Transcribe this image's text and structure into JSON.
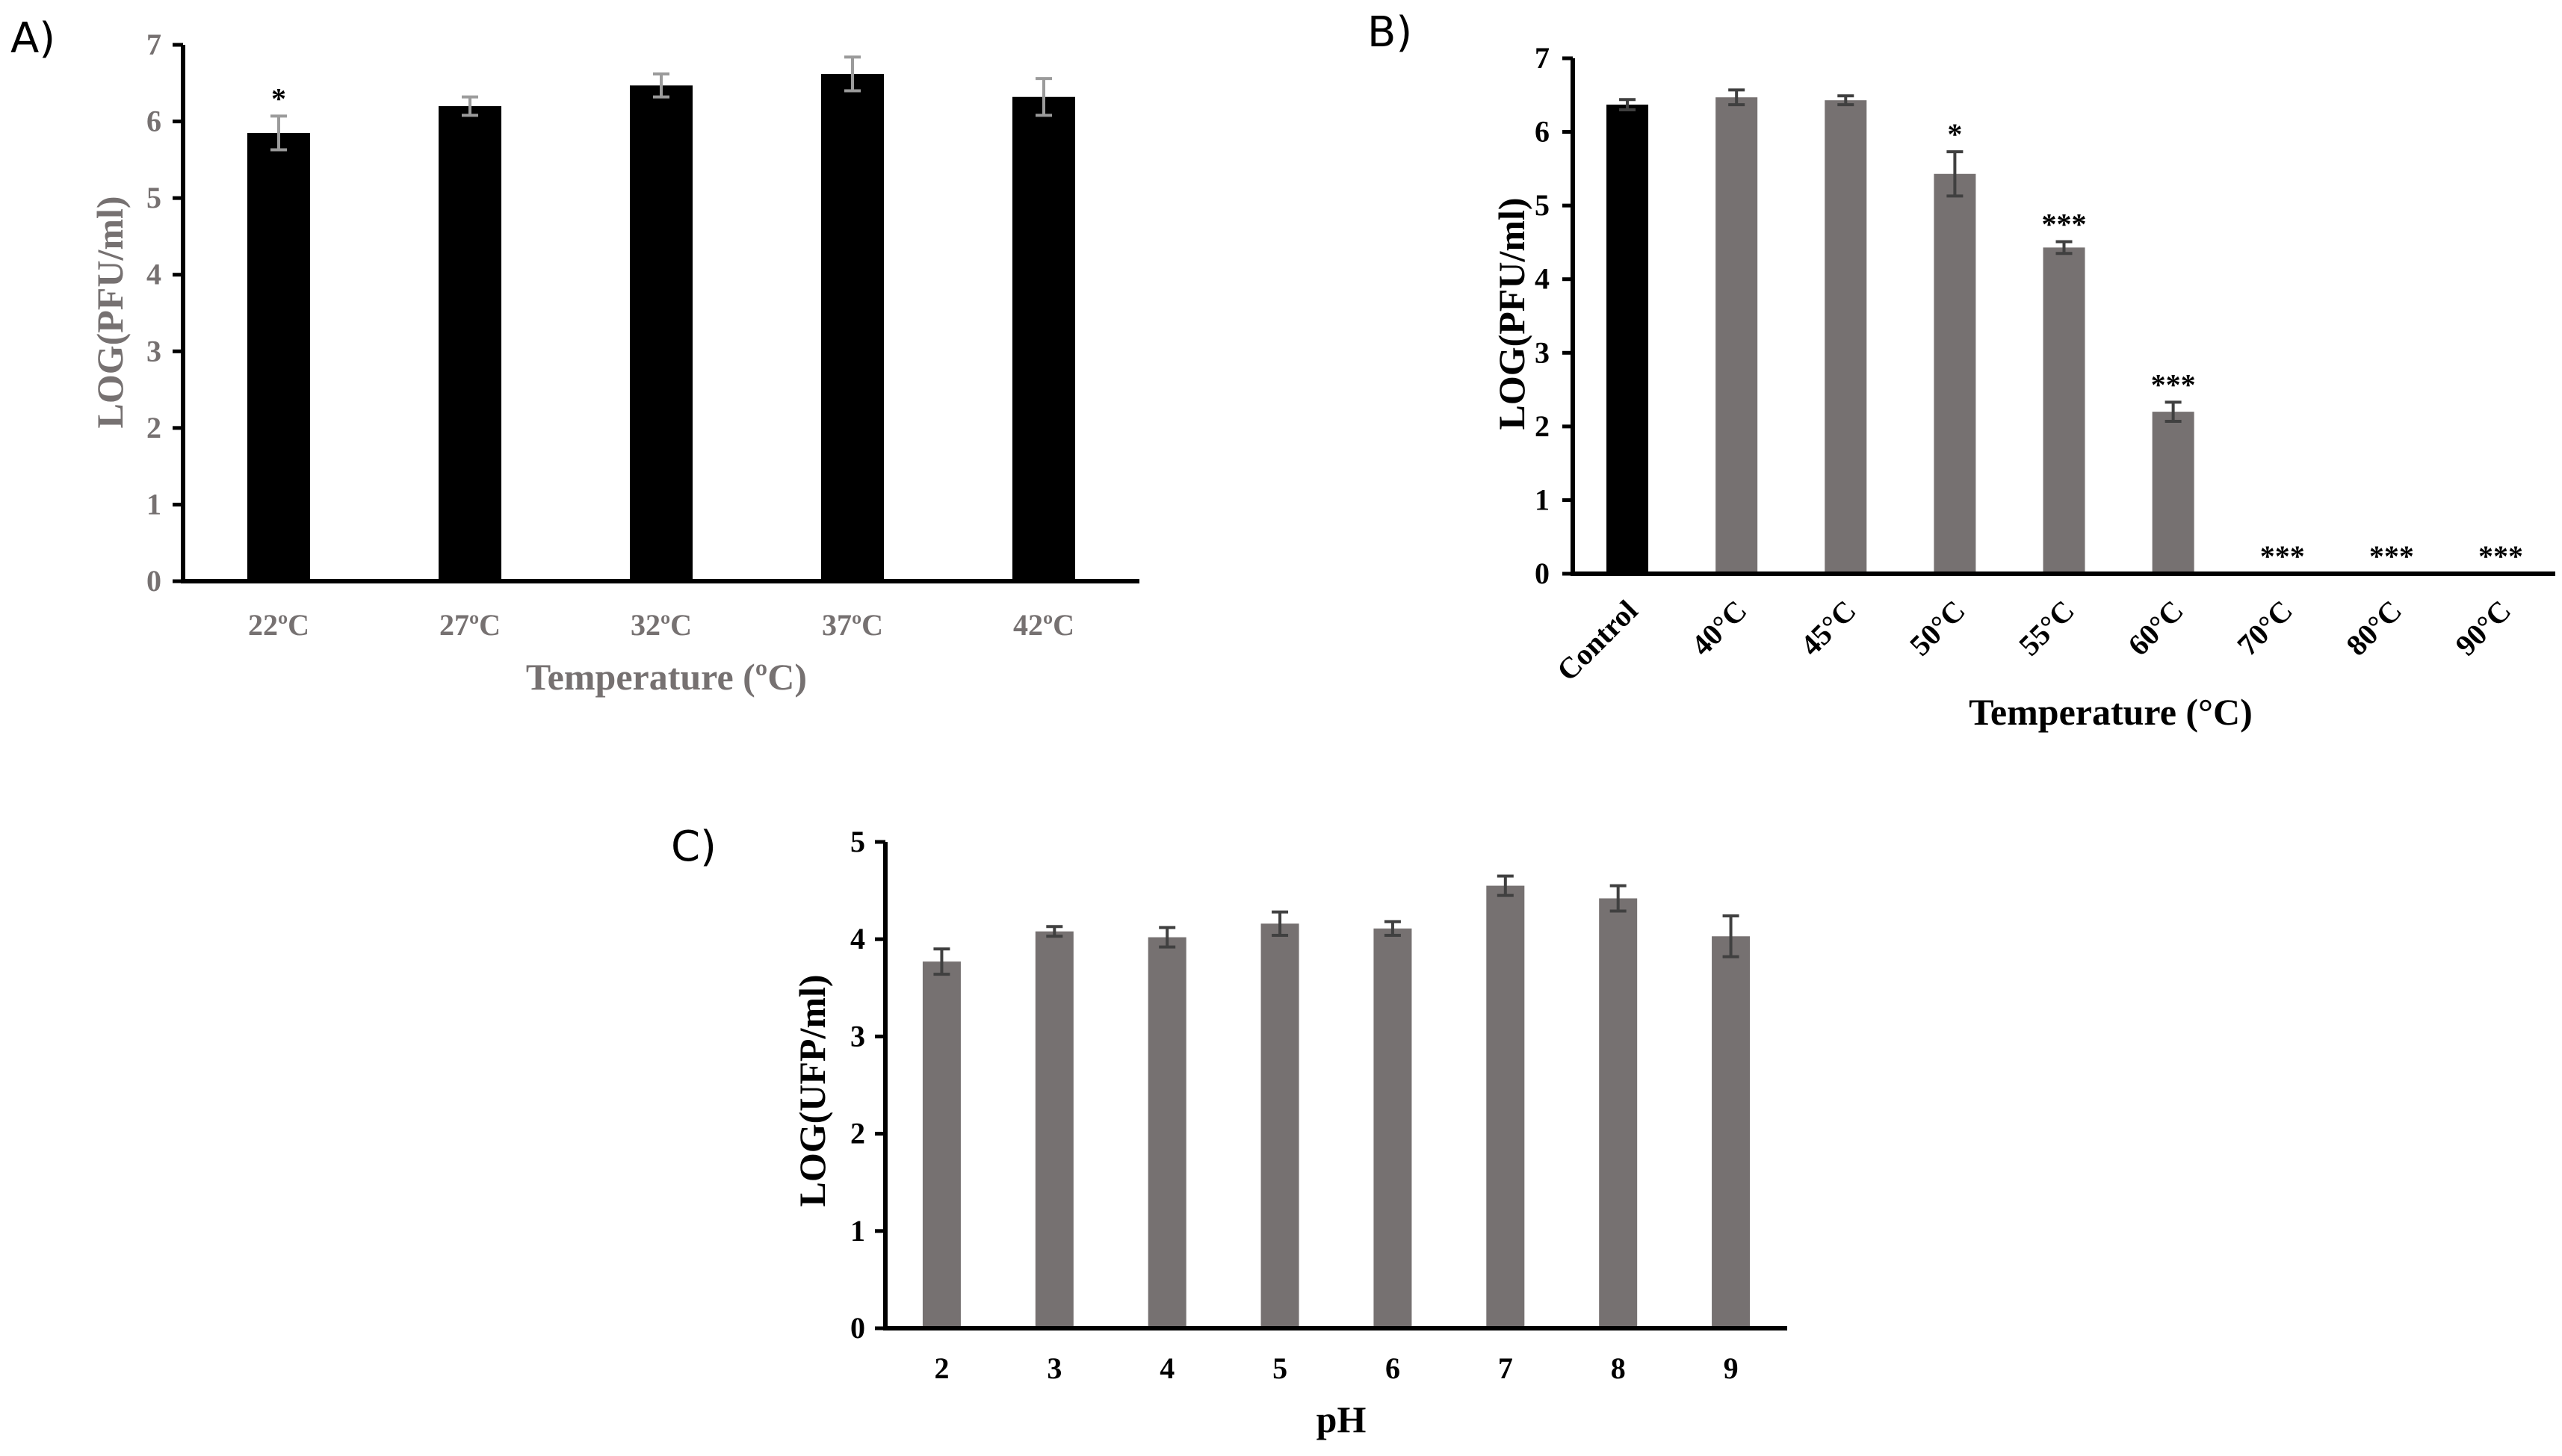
{
  "chart_data": [
    {
      "panel": "A)",
      "type": "bar",
      "categories": [
        "22ºC",
        "27ºC",
        "32ºC",
        "37ºC",
        "42ºC"
      ],
      "values": [
        5.85,
        6.2,
        6.47,
        6.62,
        6.32
      ],
      "errors": [
        0.22,
        0.12,
        0.15,
        0.22,
        0.24
      ],
      "significance": [
        "*",
        "",
        "",
        "",
        ""
      ],
      "bar_colors": [
        "#000000",
        "#000000",
        "#000000",
        "#000000",
        "#000000"
      ],
      "error_color": "#9b9b9b",
      "xlabel": "Temperature (ºC)",
      "ylabel": "LOG(PFU/ml)",
      "ylim": [
        0,
        7
      ],
      "yticks": [
        "0",
        "1",
        "2",
        "3",
        "4",
        "5",
        "6",
        "7"
      ],
      "axis_text_color": "#767171",
      "x_ticks_rotated": false
    },
    {
      "panel": "B)",
      "type": "bar",
      "categories": [
        "Control",
        "40°C",
        "45°C",
        "50°C",
        "55°C",
        "60°C",
        "70°C",
        "80°C",
        "90°C"
      ],
      "values": [
        6.37,
        6.47,
        6.43,
        5.43,
        4.43,
        2.2,
        0,
        0,
        0
      ],
      "errors": [
        0.07,
        0.1,
        0.06,
        0.3,
        0.08,
        0.13,
        0,
        0,
        0
      ],
      "significance": [
        "",
        "",
        "",
        "*",
        "***",
        "***",
        "***",
        "***",
        "***"
      ],
      "bar_colors": [
        "#000000",
        "#767171",
        "#767171",
        "#767171",
        "#767171",
        "#767171",
        "#767171",
        "#767171",
        "#767171"
      ],
      "error_color": "#404040",
      "xlabel": "Temperature (°C)",
      "ylabel": "LOG(PFU/ml)",
      "ylim": [
        0,
        7
      ],
      "yticks": [
        "0",
        "1",
        "2",
        "3",
        "4",
        "5",
        "6",
        "7"
      ],
      "axis_text_color": "#000000",
      "x_ticks_rotated": true
    },
    {
      "panel": "C)",
      "type": "bar",
      "categories": [
        "2",
        "3",
        "4",
        "5",
        "6",
        "7",
        "8",
        "9"
      ],
      "values": [
        3.77,
        4.08,
        4.02,
        4.16,
        4.11,
        4.55,
        4.42,
        4.03
      ],
      "errors": [
        0.13,
        0.05,
        0.1,
        0.12,
        0.07,
        0.1,
        0.13,
        0.21
      ],
      "significance": [
        "",
        "",
        "",
        "",
        "",
        "",
        "",
        ""
      ],
      "bar_colors": [
        "#767171",
        "#767171",
        "#767171",
        "#767171",
        "#767171",
        "#767171",
        "#767171",
        "#767171"
      ],
      "error_color": "#404040",
      "xlabel": "pH",
      "ylabel": "LOG(UFP/ml)",
      "ylim": [
        0,
        5
      ],
      "yticks": [
        "0",
        "1",
        "2",
        "3",
        "4",
        "5"
      ],
      "axis_text_color": "#000000",
      "x_ticks_rotated": false
    }
  ]
}
